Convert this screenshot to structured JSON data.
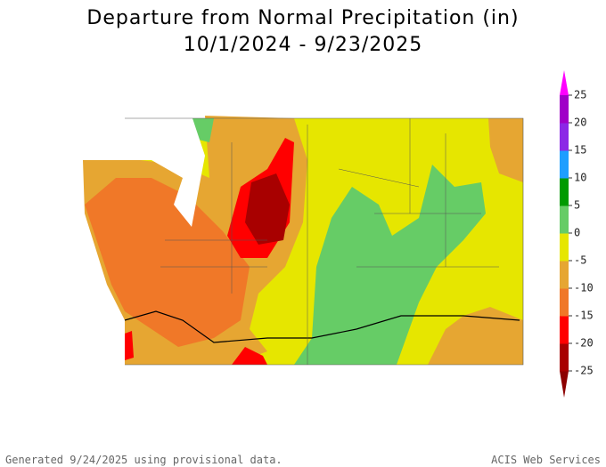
{
  "title": "Departure from Normal Precipitation (in)",
  "subtitle": "10/1/2024 - 9/23/2025",
  "colorbar": {
    "lim": [
      -25,
      25
    ],
    "ticks": [
      25,
      20,
      15,
      10,
      5,
      0,
      -5,
      -10,
      -15,
      -20,
      -25
    ],
    "colors": [
      "#8c0000",
      "#a80000",
      "#ff0000",
      "#f07828",
      "#e6a632",
      "#e6e600",
      "#66cc66",
      "#009a00",
      "#1e9eff",
      "#8c28e6",
      "#a000c8",
      "#ff00ff"
    ]
  },
  "footer": {
    "left": "Generated 9/24/2025  using provisional data.",
    "right": "ACIS Web Services"
  }
}
